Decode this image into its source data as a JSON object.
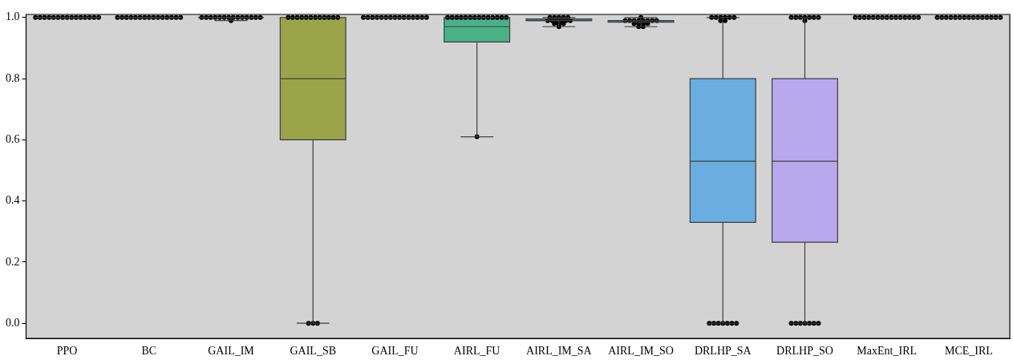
{
  "chart_data": {
    "type": "box",
    "categories": [
      "PPO",
      "BC",
      "GAIL_IM",
      "GAIL_SB",
      "GAIL_FU",
      "AIRL_FU",
      "AIRL_IM_SA",
      "AIRL_IM_SO",
      "DRLHP_SA",
      "DRLHP_SO",
      "MaxEnt_IRL",
      "MCE_IRL"
    ],
    "colors": [
      null,
      null,
      null,
      "#9aa54a",
      null,
      "#4ab08a",
      "#3f9a8e",
      "#3aa0b5",
      "#6aaee0",
      "#b8a8ec",
      null,
      null
    ],
    "boxes": [
      {
        "low": 1,
        "q1": 1,
        "median": 1,
        "q3": 1,
        "high": 1
      },
      {
        "low": 1,
        "q1": 1,
        "median": 1,
        "q3": 1,
        "high": 1
      },
      {
        "low": 0.99,
        "q1": 1,
        "median": 1,
        "q3": 1,
        "high": 1
      },
      {
        "low": 0,
        "q1": 0.6,
        "median": 0.8,
        "q3": 1,
        "high": 1
      },
      {
        "low": 1,
        "q1": 1,
        "median": 1,
        "q3": 1,
        "high": 1
      },
      {
        "low": 0.61,
        "q1": 0.92,
        "median": 0.97,
        "q3": 1,
        "high": 1
      },
      {
        "low": 0.97,
        "q1": 0.99,
        "median": 0.99,
        "q3": 0.995,
        "high": 1
      },
      {
        "low": 0.97,
        "q1": 0.985,
        "median": 0.99,
        "q3": 0.99,
        "high": 1
      },
      {
        "low": 0,
        "q1": 0.33,
        "median": 0.53,
        "q3": 0.8,
        "high": 1
      },
      {
        "low": 0,
        "q1": 0.265,
        "median": 0.53,
        "q3": 0.8,
        "high": 1
      },
      {
        "low": 1,
        "q1": 1,
        "median": 1,
        "q3": 1,
        "high": 1
      },
      {
        "low": 1,
        "q1": 1,
        "median": 1,
        "q3": 1,
        "high": 1
      }
    ],
    "series": [
      {
        "type": "scatter",
        "color": "#000000",
        "x": [
          "PPO",
          "PPO",
          "PPO",
          "PPO",
          "PPO",
          "PPO",
          "PPO",
          "PPO",
          "PPO",
          "PPO",
          "PPO",
          "PPO",
          "PPO",
          "PPO",
          "PPO",
          "BC",
          "BC",
          "BC",
          "BC",
          "BC",
          "BC",
          "BC",
          "BC",
          "BC",
          "BC",
          "BC",
          "BC",
          "BC",
          "BC",
          "BC",
          "GAIL_IM",
          "GAIL_IM",
          "GAIL_IM",
          "GAIL_IM",
          "GAIL_IM",
          "GAIL_IM",
          "GAIL_IM",
          "GAIL_IM",
          "GAIL_IM",
          "GAIL_IM",
          "GAIL_IM",
          "GAIL_IM",
          "GAIL_IM",
          "GAIL_IM",
          "GAIL_IM",
          "GAIL_SB",
          "GAIL_SB",
          "GAIL_SB",
          "GAIL_SB",
          "GAIL_SB",
          "GAIL_SB",
          "GAIL_SB",
          "GAIL_SB",
          "GAIL_SB",
          "GAIL_SB",
          "GAIL_SB",
          "GAIL_SB",
          "GAIL_SB",
          "GAIL_SB",
          "GAIL_SB",
          "GAIL_FU",
          "GAIL_FU",
          "GAIL_FU",
          "GAIL_FU",
          "GAIL_FU",
          "GAIL_FU",
          "GAIL_FU",
          "GAIL_FU",
          "GAIL_FU",
          "GAIL_FU",
          "GAIL_FU",
          "GAIL_FU",
          "GAIL_FU",
          "GAIL_FU",
          "GAIL_FU",
          "AIRL_FU",
          "AIRL_FU",
          "AIRL_FU",
          "AIRL_FU",
          "AIRL_FU",
          "AIRL_FU",
          "AIRL_FU",
          "AIRL_FU",
          "AIRL_FU",
          "AIRL_FU",
          "AIRL_FU",
          "AIRL_FU",
          "AIRL_FU",
          "AIRL_FU",
          "AIRL_FU",
          "AIRL_IM_SA",
          "AIRL_IM_SA",
          "AIRL_IM_SA",
          "AIRL_IM_SA",
          "AIRL_IM_SA",
          "AIRL_IM_SA",
          "AIRL_IM_SA",
          "AIRL_IM_SA",
          "AIRL_IM_SA",
          "AIRL_IM_SA",
          "AIRL_IM_SA",
          "AIRL_IM_SA",
          "AIRL_IM_SA",
          "AIRL_IM_SA",
          "AIRL_IM_SA",
          "AIRL_IM_SO",
          "AIRL_IM_SO",
          "AIRL_IM_SO",
          "AIRL_IM_SO",
          "AIRL_IM_SO",
          "AIRL_IM_SO",
          "AIRL_IM_SO",
          "AIRL_IM_SO",
          "AIRL_IM_SO",
          "AIRL_IM_SO",
          "AIRL_IM_SO",
          "AIRL_IM_SO",
          "AIRL_IM_SO",
          "AIRL_IM_SO",
          "AIRL_IM_SO",
          "DRLHP_SA",
          "DRLHP_SA",
          "DRLHP_SA",
          "DRLHP_SA",
          "DRLHP_SA",
          "DRLHP_SA",
          "DRLHP_SA",
          "DRLHP_SA",
          "DRLHP_SA",
          "DRLHP_SA",
          "DRLHP_SA",
          "DRLHP_SA",
          "DRLHP_SA",
          "DRLHP_SA",
          "DRLHP_SA",
          "DRLHP_SO",
          "DRLHP_SO",
          "DRLHP_SO",
          "DRLHP_SO",
          "DRLHP_SO",
          "DRLHP_SO",
          "DRLHP_SO",
          "DRLHP_SO",
          "DRLHP_SO",
          "DRLHP_SO",
          "DRLHP_SO",
          "DRLHP_SO",
          "DRLHP_SO",
          "DRLHP_SO",
          "DRLHP_SO",
          "MaxEnt_IRL",
          "MaxEnt_IRL",
          "MaxEnt_IRL",
          "MaxEnt_IRL",
          "MaxEnt_IRL",
          "MaxEnt_IRL",
          "MaxEnt_IRL",
          "MaxEnt_IRL",
          "MaxEnt_IRL",
          "MaxEnt_IRL",
          "MaxEnt_IRL",
          "MaxEnt_IRL",
          "MaxEnt_IRL",
          "MaxEnt_IRL",
          "MaxEnt_IRL",
          "MCE_IRL",
          "MCE_IRL",
          "MCE_IRL",
          "MCE_IRL",
          "MCE_IRL",
          "MCE_IRL",
          "MCE_IRL",
          "MCE_IRL",
          "MCE_IRL",
          "MCE_IRL",
          "MCE_IRL",
          "MCE_IRL",
          "MCE_IRL",
          "MCE_IRL",
          "MCE_IRL"
        ],
        "values": [
          1,
          1,
          1,
          1,
          1,
          1,
          1,
          1,
          1,
          1,
          1,
          1,
          1,
          1,
          1,
          1,
          1,
          1,
          1,
          1,
          1,
          1,
          1,
          1,
          1,
          1,
          1,
          1,
          1,
          1,
          1,
          1,
          1,
          1,
          1,
          1,
          1,
          1,
          1,
          1,
          1,
          1,
          1,
          1,
          0.99,
          1,
          1,
          1,
          1,
          1,
          1,
          1,
          1,
          1,
          1,
          1,
          1,
          0,
          0,
          0,
          1,
          1,
          1,
          1,
          1,
          1,
          1,
          1,
          1,
          1,
          1,
          1,
          1,
          1,
          1,
          1,
          1,
          1,
          1,
          1,
          1,
          1,
          1,
          1,
          1,
          1,
          1,
          1,
          1,
          0.61,
          1,
          1,
          1,
          1,
          1,
          0.99,
          0.99,
          0.99,
          0.99,
          0.99,
          0.99,
          0.98,
          0.98,
          0.98,
          0.97,
          1,
          0.99,
          0.99,
          0.99,
          0.99,
          0.99,
          0.99,
          0.99,
          0.99,
          0.98,
          0.98,
          0.98,
          0.98,
          0.97,
          0.97,
          1,
          1,
          1,
          1,
          1,
          1,
          0.99,
          0.99,
          0,
          0,
          0,
          0,
          0,
          0,
          0,
          1,
          1,
          1,
          1,
          1,
          1,
          1,
          0.99,
          0,
          0,
          0,
          0,
          0,
          0,
          0,
          1,
          1,
          1,
          1,
          1,
          1,
          1,
          1,
          1,
          1,
          1,
          1,
          1,
          1,
          1,
          1,
          1,
          1,
          1,
          1,
          1,
          1,
          1,
          1,
          1,
          1,
          1,
          1,
          1,
          1
        ]
      }
    ],
    "ylim": [
      -0.05,
      1.01
    ],
    "yticks": [
      {
        "value": 0,
        "label": "0.0"
      },
      0.2,
      0.4,
      0.6,
      0.8,
      {
        "value": 1,
        "label": "1.0"
      }
    ],
    "grid": false,
    "marker": "circle"
  }
}
